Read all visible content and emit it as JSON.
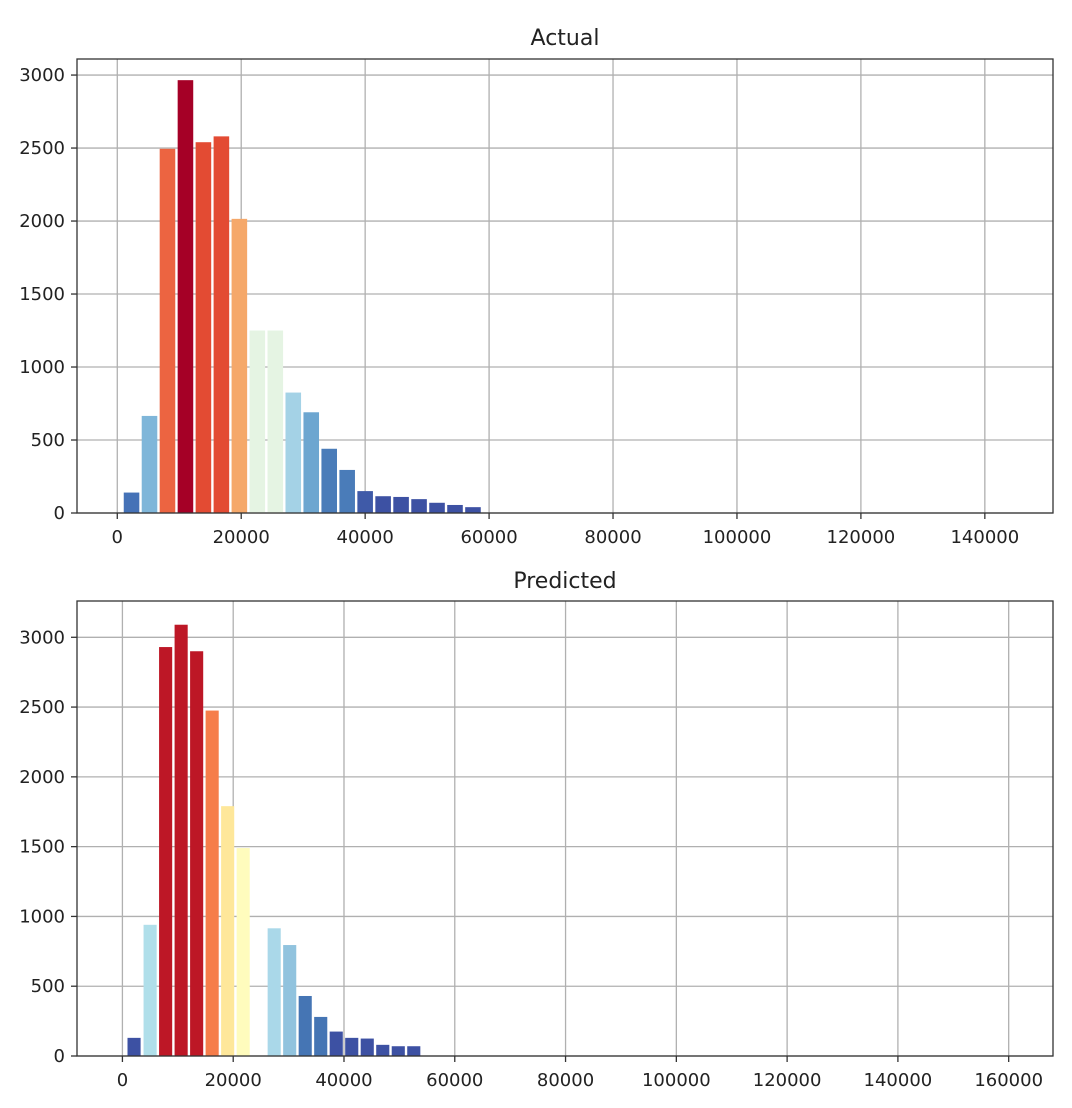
{
  "chart_data": [
    {
      "type": "bar",
      "title": "Actual",
      "xlabel": "",
      "ylabel": "",
      "xlim": [
        -6500,
        151000
      ],
      "ylim": [
        0,
        3110
      ],
      "grid": true,
      "xticks": [
        0,
        20000,
        40000,
        60000,
        80000,
        100000,
        120000,
        140000
      ],
      "xtick_labels": [
        "0",
        "20000",
        "40000",
        "60000",
        "80000",
        "100000",
        "120000",
        "140000"
      ],
      "yticks": [
        0,
        500,
        1000,
        1500,
        2000,
        2500,
        3000
      ],
      "ytick_labels": [
        "0",
        "500",
        "1000",
        "1500",
        "2000",
        "2500",
        "3000"
      ],
      "bin_width": 2900,
      "x": [
        2300,
        5200,
        8100,
        11000,
        13900,
        16800,
        19700,
        22600,
        25500,
        28400,
        31300,
        34200,
        37100,
        40000,
        42900,
        45800,
        48700,
        51600,
        54500,
        57400
      ],
      "values": [
        140,
        665,
        2495,
        2965,
        2540,
        2580,
        2015,
        1250,
        1250,
        825,
        690,
        440,
        295,
        150,
        115,
        110,
        95,
        70,
        55,
        40
      ],
      "colors": [
        "#4572b7",
        "#7fb6d9",
        "#ec6441",
        "#a50026",
        "#e34b33",
        "#e34b33",
        "#f5a86a",
        "#e5f4e3",
        "#e5f4e3",
        "#a4d2e6",
        "#6da6d0",
        "#4a7cb9",
        "#4a7cb9",
        "#3f5aa8",
        "#3d51a3",
        "#3d51a3",
        "#3d51a3",
        "#3d51a3",
        "#3d51a3",
        "#3d51a3"
      ]
    },
    {
      "type": "bar",
      "title": "Predicted",
      "xlabel": "",
      "ylabel": "",
      "xlim": [
        -8200,
        168000
      ],
      "ylim": [
        0,
        3260
      ],
      "grid": true,
      "xticks": [
        0,
        20000,
        40000,
        60000,
        80000,
        100000,
        120000,
        140000,
        160000
      ],
      "xtick_labels": [
        "0",
        "20000",
        "40000",
        "60000",
        "80000",
        "100000",
        "120000",
        "140000",
        "160000"
      ],
      "yticks": [
        0,
        500,
        1000,
        1500,
        2000,
        2500,
        3000
      ],
      "ytick_labels": [
        "0",
        "500",
        "1000",
        "1500",
        "2000",
        "2500",
        "3000"
      ],
      "bin_width": 2800,
      "x": [
        2100,
        5000,
        7800,
        10600,
        13400,
        16200,
        19000,
        21800,
        24600,
        27400,
        30200,
        33000,
        35800,
        38600,
        41400,
        44200,
        47000,
        49800,
        52600,
        55400
      ],
      "values": [
        130,
        940,
        2930,
        3090,
        2900,
        2475,
        1790,
        1490,
        0,
        915,
        795,
        430,
        280,
        175,
        130,
        125,
        80,
        70,
        70,
        0
      ],
      "colors": [
        "#3d51a3",
        "#b0dfea",
        "#bd1726",
        "#bd1726",
        "#bd1726",
        "#f67d4a",
        "#fee79a",
        "#fffcbd",
        "#fffcbd",
        "#aad8e9",
        "#91c3de",
        "#4575b4",
        "#4575b4",
        "#3d51a3",
        "#3d51a3",
        "#3d51a3",
        "#3d51a3",
        "#3d51a3",
        "#3d51a3",
        "#3d51a3"
      ]
    }
  ]
}
